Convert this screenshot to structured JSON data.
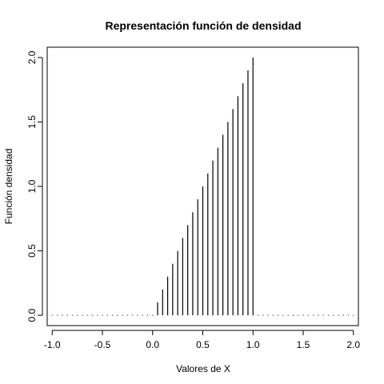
{
  "chart_data": {
    "type": "bar",
    "title": "Representación función de densidad",
    "xlabel": "Valores de X",
    "ylabel": "Función densidad",
    "xlim": [
      -1.05,
      2.05
    ],
    "ylim": [
      -0.08,
      2.08
    ],
    "xticks": [
      -1.0,
      -0.5,
      0.0,
      0.5,
      1.0,
      1.5,
      2.0
    ],
    "xtick_labels": [
      "-1.0",
      "-0.5",
      "0.0",
      "0.5",
      "1.0",
      "1.5",
      "2.0"
    ],
    "yticks": [
      0.0,
      0.5,
      1.0,
      1.5,
      2.0
    ],
    "ytick_labels": [
      "0.0",
      "0.5",
      "1.0",
      "1.5",
      "2.0"
    ],
    "grid": false,
    "style": "histogram-spikes",
    "color": "#000000",
    "x": [
      -1.0,
      -0.95,
      -0.9,
      -0.85,
      -0.8,
      -0.75,
      -0.7,
      -0.65,
      -0.6,
      -0.55,
      -0.5,
      -0.45,
      -0.4,
      -0.35,
      -0.3,
      -0.25,
      -0.2,
      -0.15,
      -0.1,
      -0.05,
      0.0,
      0.05,
      0.1,
      0.15,
      0.2,
      0.25,
      0.3,
      0.35,
      0.4,
      0.45,
      0.5,
      0.55,
      0.6,
      0.65,
      0.7,
      0.75,
      0.8,
      0.85,
      0.9,
      0.95,
      1.0,
      1.05,
      1.1,
      1.15,
      1.2,
      1.25,
      1.3,
      1.35,
      1.4,
      1.45,
      1.5,
      1.55,
      1.6,
      1.65,
      1.7,
      1.75,
      1.8,
      1.85,
      1.9,
      1.95,
      2.0
    ],
    "y": [
      0,
      0,
      0,
      0,
      0,
      0,
      0,
      0,
      0,
      0,
      0,
      0,
      0,
      0,
      0,
      0,
      0,
      0,
      0,
      0,
      0,
      0.1,
      0.2,
      0.3,
      0.4,
      0.5,
      0.6,
      0.7,
      0.8,
      0.9,
      1.0,
      1.1,
      1.2,
      1.3,
      1.4,
      1.5,
      1.6,
      1.7,
      1.8,
      1.9,
      2.0,
      0,
      0,
      0,
      0,
      0,
      0,
      0,
      0,
      0,
      0,
      0,
      0,
      0,
      0,
      0,
      0,
      0,
      0,
      0,
      0
    ]
  }
}
